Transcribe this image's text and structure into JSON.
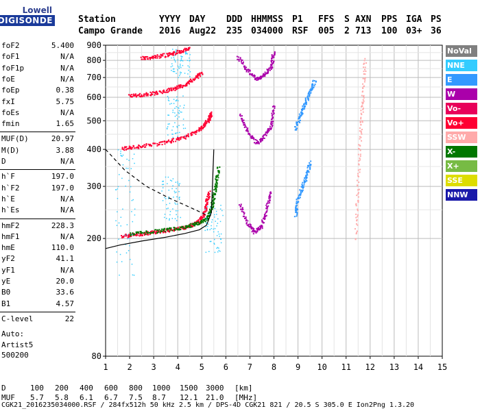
{
  "logo": {
    "line1": "Lowell",
    "line2": "DIGISONDE"
  },
  "header": {
    "row1": [
      "Station",
      "YYYY",
      "DAY",
      "DDD",
      "HHMMSS",
      "P1",
      "FFS",
      "S",
      "AXN",
      "PPS",
      "IGA",
      "PS"
    ],
    "row2": [
      "Campo Grande",
      "2016",
      "Aug22",
      "235",
      "034000",
      "RSF",
      "005",
      "2",
      "713",
      "100",
      "03+",
      "36"
    ]
  },
  "params_group1": [
    {
      "k": "foF2",
      "v": "5.400"
    },
    {
      "k": "foF1",
      "v": "N/A"
    },
    {
      "k": "foF1p",
      "v": "N/A"
    },
    {
      "k": "foE",
      "v": "N/A"
    },
    {
      "k": "foEp",
      "v": "0.38"
    },
    {
      "k": "fxI",
      "v": "5.75"
    },
    {
      "k": "foEs",
      "v": "N/A"
    },
    {
      "k": "fmin",
      "v": "1.65"
    }
  ],
  "params_group2": [
    {
      "k": "MUF(D)",
      "v": "20.97"
    },
    {
      "k": "M(D)",
      "v": "3.88"
    },
    {
      "k": "D",
      "v": "N/A"
    }
  ],
  "params_group3": [
    {
      "k": "h`F",
      "v": "197.0"
    },
    {
      "k": "h`F2",
      "v": "197.0"
    },
    {
      "k": "h`E",
      "v": "N/A"
    },
    {
      "k": "h`Es",
      "v": "N/A"
    }
  ],
  "params_group4": [
    {
      "k": "hmF2",
      "v": "228.3"
    },
    {
      "k": "hmF1",
      "v": "N/A"
    },
    {
      "k": "hmE",
      "v": "110.0"
    },
    {
      "k": "yF2",
      "v": "41.1"
    },
    {
      "k": "yF1",
      "v": "N/A"
    },
    {
      "k": "yE",
      "v": "20.0"
    },
    {
      "k": "B0",
      "v": "33.6"
    },
    {
      "k": "B1",
      "v": "4.57"
    }
  ],
  "params_group5": [
    {
      "k": "C-level",
      "v": "22"
    }
  ],
  "auto_lines": [
    "Auto:",
    "Artist5",
    "500200"
  ],
  "legend": [
    {
      "label": "NoVal",
      "color": "#808080"
    },
    {
      "label": "NNE",
      "color": "#33ccff"
    },
    {
      "label": "E",
      "color": "#3399ff"
    },
    {
      "label": "W",
      "color": "#aa00aa"
    },
    {
      "label": "Vo-",
      "color": "#e8005a"
    },
    {
      "label": "Vo+",
      "color": "#ff0033"
    },
    {
      "label": "SSW",
      "color": "#ffaaaa"
    },
    {
      "label": "X-",
      "color": "#007700"
    },
    {
      "label": "X+",
      "color": "#77bb44"
    },
    {
      "label": "SSE",
      "color": "#dddd00"
    },
    {
      "label": "NNW",
      "color": "#1a1aaa"
    }
  ],
  "footer": {
    "row_d": [
      "D",
      "100",
      "200",
      "400",
      "600",
      "800",
      "1000",
      "1500",
      "3000",
      "[km]"
    ],
    "row_muf": [
      "MUF",
      "5.7",
      "5.8",
      "6.1",
      "6.7",
      "7.5",
      "8.7",
      "12.1",
      "21.0",
      "[MHz]"
    ],
    "file_line": "CGK21_2016235034000.RSF / 284fx512h 50 kHz 2.5 km / DPS-4D CGK21 821 / 20.5 S 305.0 E Ion2Png 1.3.20"
  },
  "chart_data": {
    "type": "scatter",
    "title": "",
    "xlabel": "",
    "ylabel": "",
    "xlim": [
      1,
      15
    ],
    "ylim": [
      80,
      900
    ],
    "y_scale": "log",
    "x_ticks": [
      1,
      2,
      3,
      4,
      5,
      6,
      7,
      8,
      9,
      10,
      11,
      12,
      13,
      14,
      15
    ],
    "y_ticks": [
      80,
      200,
      300,
      400,
      500,
      600,
      700,
      800,
      900
    ],
    "grid": true,
    "legend_position": "right",
    "series": [
      {
        "name": "Vo+",
        "color": "#ff0033",
        "x": [
          1.7,
          2.2,
          2.8,
          3.4,
          4.0,
          4.5,
          4.9,
          5.1,
          5.2,
          5.3
        ],
        "y": [
          203,
          206,
          208,
          212,
          215,
          220,
          228,
          240,
          260,
          285
        ]
      },
      {
        "name": "X-",
        "color": "#007700",
        "x": [
          2.0,
          2.8,
          3.6,
          4.3,
          4.8,
          5.2,
          5.4,
          5.5,
          5.6,
          5.7
        ],
        "y": [
          207,
          210,
          214,
          218,
          224,
          232,
          250,
          275,
          305,
          345
        ]
      },
      {
        "name": "Vo+",
        "color": "#ff0033",
        "x": [
          1.7,
          2.3,
          3.0,
          3.7,
          4.3,
          4.8,
          5.1,
          5.3,
          5.4
        ],
        "y": [
          402,
          408,
          415,
          425,
          440,
          460,
          480,
          505,
          530
        ]
      },
      {
        "name": "Vo+",
        "color": "#ff0033",
        "x": [
          2.0,
          2.6,
          3.2,
          3.8,
          4.3,
          4.7,
          5.0
        ],
        "y": [
          605,
          612,
          622,
          638,
          660,
          690,
          725
        ]
      },
      {
        "name": "Vo+",
        "color": "#ff0033",
        "x": [
          2.5,
          3.0,
          3.6,
          4.1,
          4.5
        ],
        "y": [
          812,
          820,
          835,
          855,
          880
        ]
      },
      {
        "name": "W",
        "color": "#aa00aa",
        "x": [
          6.6,
          6.9,
          7.2,
          7.5,
          7.7,
          7.9
        ],
        "y": [
          260,
          225,
          210,
          220,
          250,
          290
        ]
      },
      {
        "name": "W",
        "color": "#aa00aa",
        "x": [
          6.6,
          6.9,
          7.3,
          7.6,
          7.9,
          8.0
        ],
        "y": [
          520,
          460,
          420,
          440,
          480,
          560
        ]
      },
      {
        "name": "W",
        "color": "#aa00aa",
        "x": [
          6.5,
          6.9,
          7.3,
          7.6,
          7.9,
          8.0
        ],
        "y": [
          820,
          740,
          690,
          710,
          760,
          850
        ]
      },
      {
        "name": "E",
        "color": "#3399ff",
        "x": [
          8.9,
          9.0,
          9.2,
          9.4,
          9.5
        ],
        "y": [
          240,
          270,
          300,
          330,
          360
        ]
      },
      {
        "name": "E",
        "color": "#3399ff",
        "x": [
          8.9,
          9.1,
          9.3,
          9.5,
          9.7
        ],
        "y": [
          470,
          520,
          570,
          620,
          680
        ]
      },
      {
        "name": "SSW",
        "color": "#ffaaaa",
        "x": [
          11.4,
          11.5,
          11.6,
          11.7,
          11.8
        ],
        "y": [
          200,
          300,
          450,
          600,
          800
        ]
      }
    ],
    "profile": {
      "x": [
        1.0,
        1.6,
        2.5,
        3.5,
        4.3,
        4.9,
        5.2,
        5.4,
        5.5
      ],
      "y": [
        185,
        190,
        196,
        202,
        208,
        214,
        222,
        245,
        400
      ]
    },
    "profile_dashed": {
      "x": [
        1.0,
        1.8,
        2.7,
        3.6,
        4.5,
        5.2
      ],
      "y": [
        400,
        340,
        300,
        275,
        255,
        240
      ]
    }
  }
}
